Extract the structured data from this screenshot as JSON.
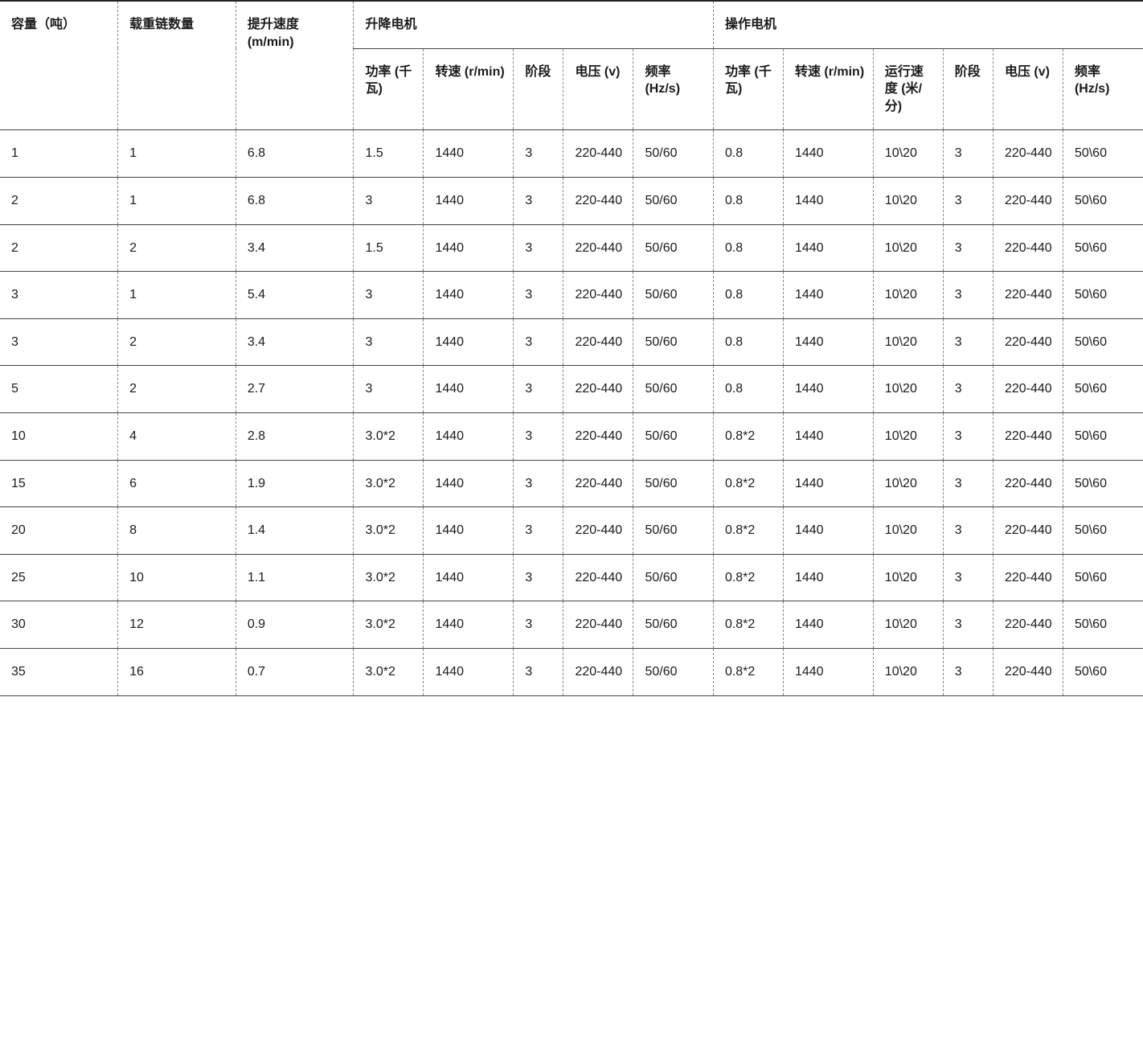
{
  "table": {
    "type": "table",
    "background_color": "#ffffff",
    "text_color": "#1a1a1a",
    "border_color_solid": "#444444",
    "border_color_dashed": "#888888",
    "top_border_color": "#222222",
    "header_fontweight": 600,
    "body_fontweight": 400,
    "font_size_pt": 12,
    "header_row_1": {
      "cols": [
        {
          "label": "容量（吨）",
          "rowspan": 2
        },
        {
          "label": "载重链数量",
          "rowspan": 2
        },
        {
          "label": "提升速度 (m/min)",
          "rowspan": 2
        },
        {
          "label": "升降电机",
          "colspan": 5
        },
        {
          "label": "操作电机",
          "colspan": 6
        }
      ]
    },
    "header_row_2": {
      "cols": [
        {
          "label": "功率 (千瓦)"
        },
        {
          "label": "转速 (r/min)"
        },
        {
          "label": "阶段"
        },
        {
          "label": "电压 (v)"
        },
        {
          "label": "频率 (Hz/s)"
        },
        {
          "label": "功率 (千瓦)"
        },
        {
          "label": "转速 (r/min)"
        },
        {
          "label": "运行速度 (米/分)"
        },
        {
          "label": "阶段"
        },
        {
          "label": "电压 (v)"
        },
        {
          "label": "频率 (Hz/s)"
        }
      ]
    },
    "columns_count": 14,
    "rows": [
      [
        "1",
        "1",
        "6.8",
        "1.5",
        "1440",
        "3",
        "220-440",
        "50/60",
        "0.8",
        "1440",
        "10\\20",
        "3",
        "220-440",
        "50\\60"
      ],
      [
        "2",
        "1",
        "6.8",
        "3",
        "1440",
        "3",
        "220-440",
        "50/60",
        "0.8",
        "1440",
        "10\\20",
        "3",
        "220-440",
        "50\\60"
      ],
      [
        "2",
        "2",
        "3.4",
        "1.5",
        "1440",
        "3",
        "220-440",
        "50/60",
        "0.8",
        "1440",
        "10\\20",
        "3",
        "220-440",
        "50\\60"
      ],
      [
        "3",
        "1",
        "5.4",
        "3",
        "1440",
        "3",
        "220-440",
        "50/60",
        "0.8",
        "1440",
        "10\\20",
        "3",
        "220-440",
        "50\\60"
      ],
      [
        "3",
        "2",
        "3.4",
        "3",
        "1440",
        "3",
        "220-440",
        "50/60",
        "0.8",
        "1440",
        "10\\20",
        "3",
        "220-440",
        "50\\60"
      ],
      [
        "5",
        "2",
        "2.7",
        "3",
        "1440",
        "3",
        "220-440",
        "50/60",
        "0.8",
        "1440",
        "10\\20",
        "3",
        "220-440",
        "50\\60"
      ],
      [
        "10",
        "4",
        "2.8",
        "3.0*2",
        "1440",
        "3",
        "220-440",
        "50/60",
        "0.8*2",
        "1440",
        "10\\20",
        "3",
        "220-440",
        "50\\60"
      ],
      [
        "15",
        "6",
        "1.9",
        "3.0*2",
        "1440",
        "3",
        "220-440",
        "50/60",
        "0.8*2",
        "1440",
        "10\\20",
        "3",
        "220-440",
        "50\\60"
      ],
      [
        "20",
        "8",
        "1.4",
        "3.0*2",
        "1440",
        "3",
        "220-440",
        "50/60",
        "0.8*2",
        "1440",
        "10\\20",
        "3",
        "220-440",
        "50\\60"
      ],
      [
        "25",
        "10",
        "1.1",
        "3.0*2",
        "1440",
        "3",
        "220-440",
        "50/60",
        "0.8*2",
        "1440",
        "10\\20",
        "3",
        "220-440",
        "50\\60"
      ],
      [
        "30",
        "12",
        "0.9",
        "3.0*2",
        "1440",
        "3",
        "220-440",
        "50/60",
        "0.8*2",
        "1440",
        "10\\20",
        "3",
        "220-440",
        "50\\60"
      ],
      [
        "35",
        "16",
        "0.7",
        "3.0*2",
        "1440",
        "3",
        "220-440",
        "50/60",
        "0.8*2",
        "1440",
        "10\\20",
        "3",
        "220-440",
        "50\\60"
      ]
    ]
  }
}
